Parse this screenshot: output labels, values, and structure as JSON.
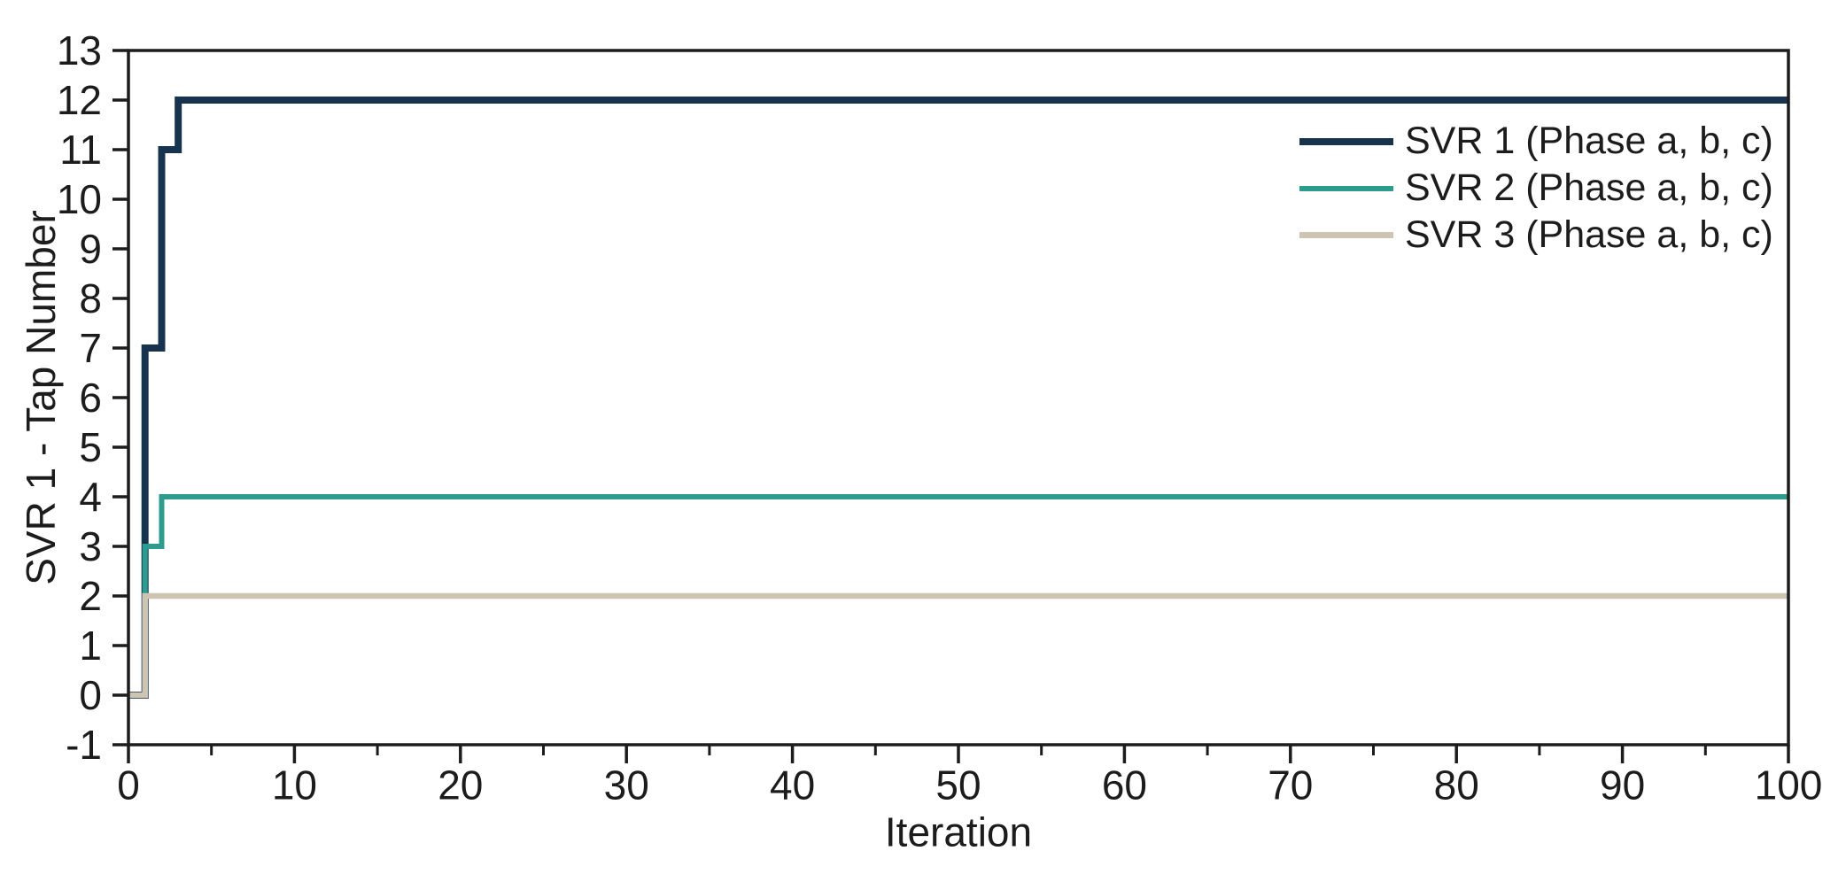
{
  "figure": {
    "background": "#ffffff",
    "axis_color": "#1c1c1c",
    "text_color": "#1c1c1c"
  },
  "chart_data": {
    "type": "line",
    "step_mode": "post",
    "title": "",
    "xlabel": "Iteration",
    "ylabel": "SVR 1 - Tap Number",
    "xlim": [
      0,
      100
    ],
    "ylim": [
      -1,
      13
    ],
    "x_major_ticks": [
      0,
      10,
      20,
      30,
      40,
      50,
      60,
      70,
      80,
      90,
      100
    ],
    "x_minor_ticks": [
      5,
      15,
      25,
      35,
      45,
      55,
      65,
      75,
      85,
      95
    ],
    "y_major_ticks": [
      -1,
      0,
      1,
      2,
      3,
      4,
      5,
      6,
      7,
      8,
      9,
      10,
      11,
      12,
      13
    ],
    "grid": false,
    "legend_position": "top-right",
    "series": [
      {
        "name": "SVR 1 (Phase a, b, c)",
        "color": "#18334e",
        "line_width": 8,
        "points": [
          [
            0,
            0
          ],
          [
            1,
            0
          ],
          [
            1,
            7
          ],
          [
            2,
            7
          ],
          [
            2,
            11
          ],
          [
            3,
            11
          ],
          [
            3,
            12
          ],
          [
            100,
            12
          ]
        ]
      },
      {
        "name": "SVR 2 (Phase a, b, c)",
        "color": "#2c9c8e",
        "line_width": 6,
        "points": [
          [
            0,
            0
          ],
          [
            1,
            0
          ],
          [
            1,
            3
          ],
          [
            2,
            3
          ],
          [
            2,
            4
          ],
          [
            100,
            4
          ]
        ]
      },
      {
        "name": "SVR 3 (Phase a, b, c)",
        "color": "#cdc5b1",
        "line_width": 6.5,
        "points": [
          [
            0,
            0
          ],
          [
            1,
            0
          ],
          [
            1,
            2
          ],
          [
            100,
            2
          ]
        ]
      }
    ]
  }
}
